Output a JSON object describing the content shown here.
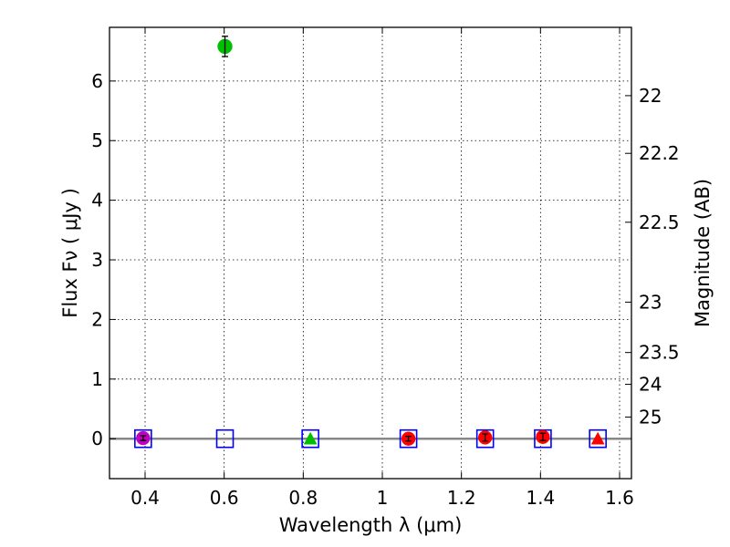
{
  "chart_data": {
    "type": "scatter",
    "title": "",
    "xlabel": "Wavelength  λ (μm)",
    "ylabel": "Flux  Fν  ( μJy )",
    "ylabel_right": "Magnitude (AB)",
    "xlim": [
      0.31,
      1.63
    ],
    "ylim": [
      -0.67,
      6.9
    ],
    "grid": true,
    "x_ticks": [
      0.4,
      0.6,
      0.8,
      1.0,
      1.2,
      1.4,
      1.6
    ],
    "x_tick_labels": [
      "0.4",
      "0.6",
      "0.8",
      "1",
      "1.2",
      "1.4",
      "1.6"
    ],
    "y_ticks": [
      0,
      1,
      2,
      3,
      4,
      5,
      6
    ],
    "y_tick_labels": [
      "0",
      "1",
      "2",
      "3",
      "4",
      "5",
      "6"
    ],
    "mag_ticks": [
      22,
      22.2,
      22.5,
      23,
      23.5,
      24,
      25
    ],
    "mag_tick_labels": [
      "22",
      "22.2",
      "22.5",
      "23",
      "23.5",
      "24",
      "25"
    ],
    "reference_line": {
      "y": 0,
      "color": "#888888"
    },
    "series": [
      {
        "name": "blue open squares",
        "marker": "square-open",
        "color": "#0000ff",
        "x": [
          0.395,
          0.602,
          0.818,
          1.066,
          1.26,
          1.406,
          1.545
        ],
        "y": [
          0,
          0,
          0,
          0,
          0,
          0,
          0
        ]
      },
      {
        "name": "magenta circle",
        "marker": "circle",
        "color": "#bf00bf",
        "x": [
          0.395
        ],
        "y": [
          0.01
        ],
        "yerr": [
          0.04
        ]
      },
      {
        "name": "green circle",
        "marker": "circle",
        "color": "#00bf00",
        "x": [
          0.602
        ],
        "y": [
          6.58
        ],
        "yerr": [
          0.17
        ]
      },
      {
        "name": "green triangle",
        "marker": "triangle",
        "color": "#00bf00",
        "x": [
          0.818
        ],
        "y": [
          0.0
        ]
      },
      {
        "name": "red circles",
        "marker": "circle",
        "color": "#ff0000",
        "x": [
          1.066,
          1.26,
          1.406
        ],
        "y": [
          0.0,
          0.02,
          0.03
        ],
        "yerr": [
          0.04,
          0.06,
          0.06
        ]
      },
      {
        "name": "red triangle",
        "marker": "triangle",
        "color": "#ff0000",
        "x": [
          1.545
        ],
        "y": [
          0.0
        ]
      }
    ]
  }
}
